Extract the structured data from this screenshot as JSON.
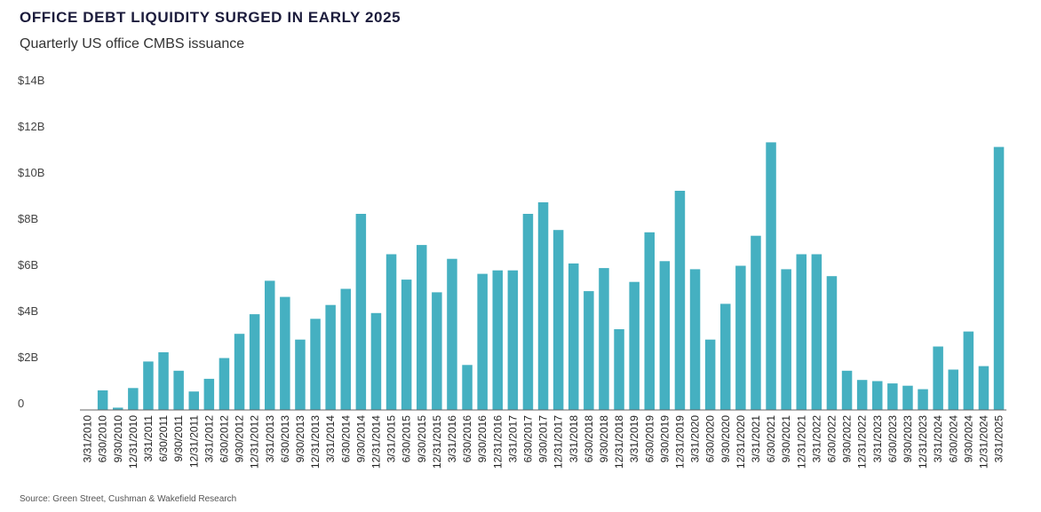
{
  "title": "OFFICE DEBT LIQUIDITY SURGED IN EARLY 2025",
  "subtitle": "Quarterly US office CMBS issuance",
  "source": "Source: Green Street, Cushman & Wakefield Research",
  "colors": {
    "bar": "#45b0c1",
    "axis": "#666666"
  },
  "chart_data": {
    "type": "bar",
    "title": "OFFICE DEBT LIQUIDITY SURGED IN EARLY 2025",
    "subtitle": "Quarterly US office CMBS issuance",
    "xlabel": "",
    "ylabel": "",
    "ylim": [
      0,
      14
    ],
    "yticks": [
      0,
      2,
      4,
      6,
      8,
      10,
      12,
      14
    ],
    "ytick_labels": [
      "0",
      "$2B",
      "$4B",
      "$6B",
      "$8B",
      "$10B",
      "$12B",
      "$14B"
    ],
    "grid": false,
    "legend": "none",
    "categories": [
      "3/31/2010",
      "6/30/2010",
      "9/30/2010",
      "12/31/2010",
      "3/31/2011",
      "6/30/2011",
      "9/30/2011",
      "12/31/2011",
      "3/31/2012",
      "6/30/2012",
      "9/30/2012",
      "12/31/2012",
      "3/31/2013",
      "6/30/2013",
      "9/30/2013",
      "12/31/2013",
      "3/31/2014",
      "6/30/2014",
      "9/30/2014",
      "12/31/2014",
      "3/31/2015",
      "6/30/2015",
      "9/30/2015",
      "12/31/2015",
      "3/31/2016",
      "6/30/2016",
      "9/30/2016",
      "12/31/2016",
      "3/31/2017",
      "6/30/2017",
      "9/30/2017",
      "12/31/2017",
      "3/31/2018",
      "6/30/2018",
      "9/30/2018",
      "12/31/2018",
      "3/31/2019",
      "6/30/2019",
      "9/30/2019",
      "12/31/2019",
      "3/31/2020",
      "6/30/2020",
      "9/30/2020",
      "12/31/2020",
      "3/31/2021",
      "6/30/2021",
      "9/30/2021",
      "12/31/2021",
      "3/31/2022",
      "6/30/2022",
      "9/30/2022",
      "12/31/2022",
      "3/31/2023",
      "6/30/2023",
      "9/30/2023",
      "12/31/2023",
      "3/31/2024",
      "6/30/2024",
      "9/30/2024",
      "12/31/2024",
      "3/31/2025"
    ],
    "values": [
      0,
      0.85,
      0.1,
      0.95,
      2.1,
      2.5,
      1.7,
      0.8,
      1.35,
      2.25,
      3.3,
      4.15,
      5.6,
      4.9,
      3.05,
      3.95,
      4.55,
      5.25,
      8.5,
      4.2,
      6.75,
      5.65,
      7.15,
      5.1,
      6.55,
      1.95,
      5.9,
      6.05,
      6.05,
      8.5,
      9.0,
      7.8,
      6.35,
      5.15,
      6.15,
      3.5,
      5.55,
      7.7,
      6.45,
      9.5,
      6.1,
      3.05,
      4.6,
      6.25,
      7.55,
      11.6,
      6.1,
      6.75,
      6.75,
      5.8,
      1.7,
      1.3,
      1.25,
      1.15,
      1.05,
      0.9,
      2.75,
      1.75,
      3.4,
      1.9,
      11.4
    ]
  }
}
